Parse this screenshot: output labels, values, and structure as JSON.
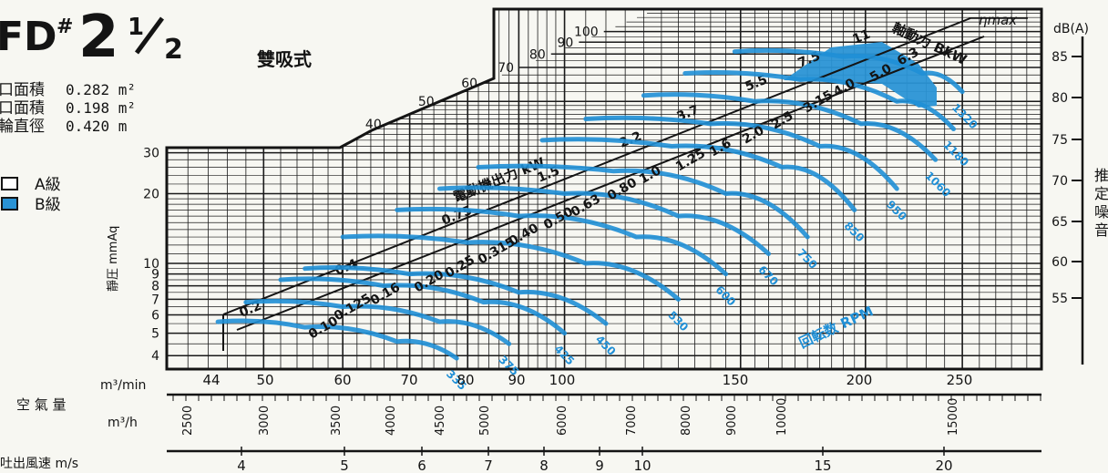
{
  "header": {
    "model_prefix": "FD",
    "model_hash": "#",
    "model_number": "2",
    "model_fraction_num": "1",
    "model_fraction_den": "2",
    "type_label": "雙吸式",
    "specs": [
      {
        "label": "口面積",
        "value": "0.282 m²"
      },
      {
        "label": "口面積",
        "value": "0.198 m²"
      },
      {
        "label": "輪直徑",
        "value": "0.420 m"
      }
    ],
    "legend": [
      {
        "label": "A級",
        "color": "#ffffff"
      },
      {
        "label": "B級",
        "color": "#2a93d5"
      }
    ]
  },
  "colors": {
    "curve": "#1f8fd6",
    "grid": "#1a1a1a",
    "fill": "#2a93d5"
  },
  "chart_data": {
    "type": "line",
    "title": "",
    "ylabel": "靜圧 mmAq",
    "x_axis_labels": {
      "m3min": "m³/min",
      "air_volume": "空 氣 量",
      "m3h": "m³/h",
      "velocity": "吐出風速 m/s"
    },
    "x_ticks_m3min": [
      "44",
      "50",
      "60",
      "70",
      "80",
      "90",
      "100",
      "150",
      "200",
      "250"
    ],
    "x_ticks_m3h": [
      "2500",
      "3000",
      "3500",
      "4000",
      "4500",
      "5000",
      "6000",
      "7000",
      "8000",
      "9000",
      "10000",
      "15000"
    ],
    "x_ticks_velocity": [
      "4",
      "5",
      "6",
      "7",
      "8",
      "9",
      "10",
      "15",
      "20"
    ],
    "y_ticks": [
      "4",
      "5",
      "6",
      "7",
      "8",
      "9",
      "10",
      "20",
      "30",
      "40",
      "50",
      "60",
      "70",
      "80",
      "90",
      "100"
    ],
    "db_axis": {
      "label": "dB(A)",
      "ticks": [
        "85",
        "80",
        "75",
        "70",
        "65",
        "60",
        "55"
      ],
      "side_label": "推定噪音"
    },
    "motor_output_label": "電動機出力 kW",
    "motor_output_values": [
      "0.2",
      "0.4",
      "0.75",
      "1.5",
      "2.2",
      "3.7",
      "5.5",
      "7.5",
      "11"
    ],
    "shaft_power_label": "軸動力 BkW",
    "shaft_power_values": [
      "0.10",
      "0.125",
      "0.16",
      "0.20",
      "0.25",
      "0.315",
      "0.40",
      "0.50",
      "0.63",
      "0.80",
      "1.0",
      "1.25",
      "1.6",
      "2.0",
      "2.5",
      "3.15",
      "4.0",
      "5.0",
      "6.3"
    ],
    "eta_label": "ηmax",
    "rpm_label": "回転数 RPM",
    "rpm_values": [
      "335",
      "375",
      "425",
      "450",
      "530",
      "600",
      "670",
      "750",
      "850",
      "950",
      "1060",
      "1180",
      "1320"
    ],
    "series": [
      {
        "name": "335",
        "points": [
          [
            45,
            5.6
          ],
          [
            55,
            5.3
          ],
          [
            68,
            4.6
          ],
          [
            78,
            3.9
          ]
        ]
      },
      {
        "name": "375",
        "points": [
          [
            48,
            6.8
          ],
          [
            60,
            6.5
          ],
          [
            75,
            5.6
          ],
          [
            88,
            4.5
          ]
        ]
      },
      {
        "name": "425",
        "points": [
          [
            52,
            8.5
          ],
          [
            66,
            8.0
          ],
          [
            83,
            6.8
          ],
          [
            100,
            5.0
          ]
        ]
      },
      {
        "name": "450",
        "points": [
          [
            55,
            9.5
          ],
          [
            70,
            9.0
          ],
          [
            90,
            7.5
          ],
          [
            110,
            5.5
          ]
        ]
      },
      {
        "name": "530",
        "points": [
          [
            60,
            13
          ],
          [
            80,
            12.3
          ],
          [
            105,
            10
          ],
          [
            130,
            7
          ]
        ]
      },
      {
        "name": "600",
        "points": [
          [
            68,
            17
          ],
          [
            90,
            16
          ],
          [
            118,
            13
          ],
          [
            145,
            9
          ]
        ]
      },
      {
        "name": "670",
        "points": [
          [
            75,
            21
          ],
          [
            100,
            20
          ],
          [
            130,
            16
          ],
          [
            160,
            11
          ]
        ]
      },
      {
        "name": "750",
        "points": [
          [
            82,
            26
          ],
          [
            112,
            25
          ],
          [
            145,
            20
          ],
          [
            175,
            13
          ]
        ]
      },
      {
        "name": "850",
        "points": [
          [
            95,
            34
          ],
          [
            128,
            32
          ],
          [
            165,
            26
          ],
          [
            195,
            17
          ]
        ]
      },
      {
        "name": "950",
        "points": [
          [
            105,
            42
          ],
          [
            140,
            40
          ],
          [
            180,
            32
          ],
          [
            215,
            21
          ]
        ]
      },
      {
        "name": "1060",
        "points": [
          [
            120,
            53
          ],
          [
            155,
            50
          ],
          [
            198,
            40
          ],
          [
            235,
            28
          ]
        ]
      },
      {
        "name": "1180",
        "points": [
          [
            132,
            66
          ],
          [
            172,
            62
          ],
          [
            215,
            50
          ],
          [
            245,
            38
          ]
        ]
      },
      {
        "name": "1320",
        "points": [
          [
            148,
            82
          ],
          [
            190,
            78
          ],
          [
            228,
            66
          ],
          [
            250,
            55
          ]
        ]
      }
    ]
  }
}
